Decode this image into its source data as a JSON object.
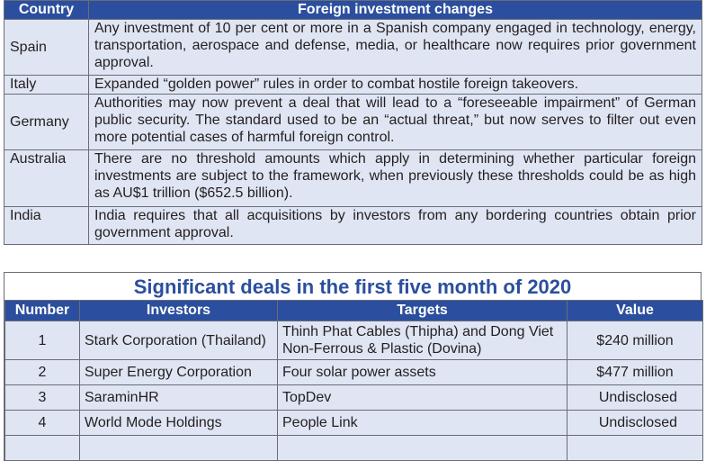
{
  "investment_table": {
    "headers": {
      "country": "Country",
      "changes": "Foreign investment changes"
    },
    "rows": [
      {
        "country": "Spain",
        "text": "Any investment of 10 per cent or more in a Spanish company engaged in technology, energy, transportation, aerospace and defense, media, or healthcare now requires prior government approval."
      },
      {
        "country": "Italy",
        "text": "Expanded “golden power” rules in order to combat hostile foreign takeovers."
      },
      {
        "country": "Germany",
        "text": "Authorities may now prevent a deal that will lead to a “foreseeable impairment” of German public security. The standard used to be an “actual threat,” but now serves to filter out even more potential cases of harmful foreign control."
      },
      {
        "country": "Australia",
        "text": "There are no threshold amounts which apply in determining whether particular foreign investments are subject to the framework, when previously these thresholds could be as high as AU$1 trillion ($652.5 billion)."
      },
      {
        "country": "India",
        "text": "India requires that all acquisitions by investors from any bordering countries obtain prior government approval."
      }
    ]
  },
  "deals_table": {
    "title": "Significant deals in the first five month of 2020",
    "headers": {
      "number": "Number",
      "investors": "Investors",
      "targets": "Targets",
      "value": "Value"
    },
    "rows": [
      {
        "number": "1",
        "investors": "Stark Corporation (Thailand)",
        "targets": "Thinh Phat Cables (Thipha) and Dong Viet Non-Ferrous & Plastic (Dovina)",
        "value": "$240 million"
      },
      {
        "number": "2",
        "investors": "Super Energy Corporation",
        "targets": "Four solar power assets",
        "value": "$477 million"
      },
      {
        "number": "3",
        "investors": "SaraminHR",
        "targets": "TopDev",
        "value": "Undisclosed"
      },
      {
        "number": "4",
        "investors": "World Mode Holdings",
        "targets": "People Link",
        "value": "Undisclosed"
      },
      {
        "number": "",
        "investors": "",
        "targets": "",
        "value": ""
      }
    ]
  }
}
